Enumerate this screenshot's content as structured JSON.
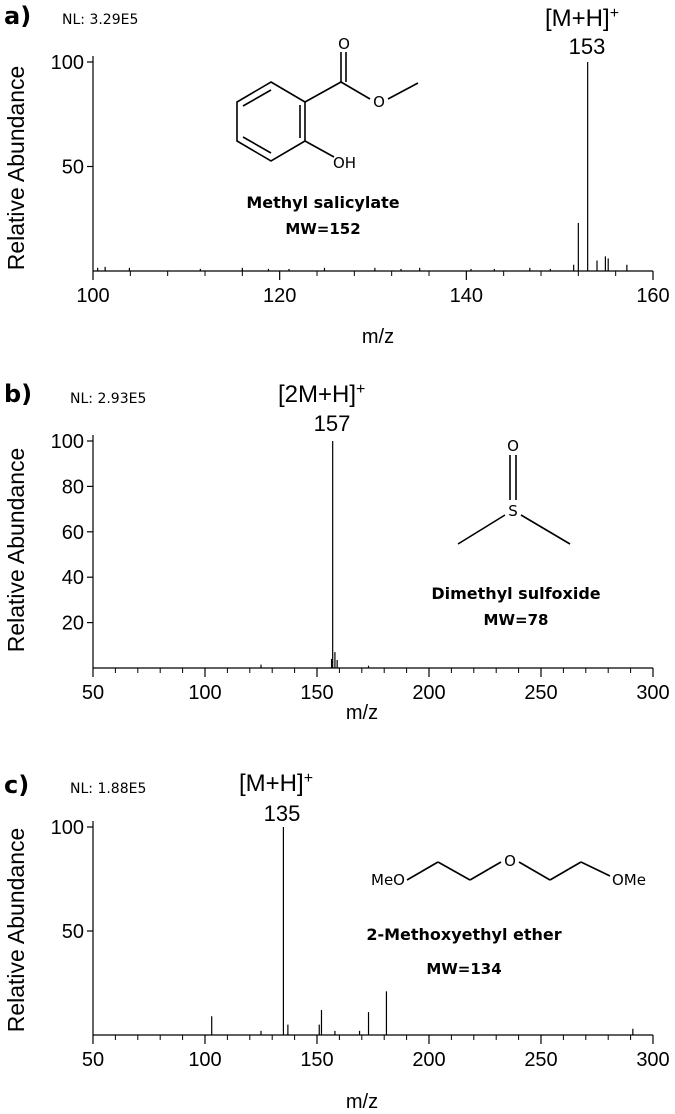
{
  "chart_data": [
    {
      "type": "bar",
      "panel": "a)",
      "nl": "NL: 3.29E5",
      "xlabel": "m/z",
      "ylabel": "Relative Abundance",
      "xlim": [
        100,
        160
      ],
      "ylim": [
        0,
        100
      ],
      "xticks": [
        100,
        120,
        140,
        160
      ],
      "yticks": [
        50,
        100
      ],
      "annotation": {
        "ion": "[M+H]",
        "charge": "+",
        "mz": "153"
      },
      "compound": {
        "name": "Methyl salicylate",
        "mw": "MW=152",
        "atoms": [
          "O",
          "O",
          "OH"
        ]
      },
      "peaks": [
        {
          "mz": 100.5,
          "y": 1.5
        },
        {
          "mz": 101.3,
          "y": 2
        },
        {
          "mz": 103.9,
          "y": 1.5
        },
        {
          "mz": 111.5,
          "y": 1
        },
        {
          "mz": 116.0,
          "y": 1.5
        },
        {
          "mz": 118.8,
          "y": 1
        },
        {
          "mz": 121.0,
          "y": 1
        },
        {
          "mz": 124.8,
          "y": 1.5
        },
        {
          "mz": 130.2,
          "y": 1.5
        },
        {
          "mz": 133.0,
          "y": 1
        },
        {
          "mz": 135.0,
          "y": 1.5
        },
        {
          "mz": 140.5,
          "y": 1
        },
        {
          "mz": 143.0,
          "y": 1
        },
        {
          "mz": 146.8,
          "y": 1.5
        },
        {
          "mz": 149.0,
          "y": 1
        },
        {
          "mz": 151.5,
          "y": 3
        },
        {
          "mz": 152.0,
          "y": 23
        },
        {
          "mz": 153.0,
          "y": 100
        },
        {
          "mz": 154.0,
          "y": 5
        },
        {
          "mz": 154.9,
          "y": 7
        },
        {
          "mz": 155.2,
          "y": 6
        },
        {
          "mz": 157.2,
          "y": 3
        }
      ]
    },
    {
      "type": "bar",
      "panel": "b)",
      "nl": "NL: 2.93E5",
      "xlabel": "m/z",
      "ylabel": "Relative Abundance",
      "xlim": [
        50,
        300
      ],
      "ylim": [
        0,
        100
      ],
      "xticks": [
        50,
        100,
        150,
        200,
        250,
        300
      ],
      "yticks": [
        20,
        40,
        60,
        80,
        100
      ],
      "annotation": {
        "ion": "[2M+H]",
        "charge": "+",
        "mz": "157"
      },
      "compound": {
        "name": "Dimethyl sulfoxide",
        "mw": "MW=78",
        "atoms": [
          "O",
          "S"
        ]
      },
      "peaks": [
        {
          "mz": 125,
          "y": 1.5
        },
        {
          "mz": 156.5,
          "y": 4
        },
        {
          "mz": 157,
          "y": 100
        },
        {
          "mz": 158,
          "y": 7
        },
        {
          "mz": 159,
          "y": 3.5
        },
        {
          "mz": 173,
          "y": 1
        }
      ]
    },
    {
      "type": "bar",
      "panel": "c)",
      "nl": "NL: 1.88E5",
      "xlabel": "m/z",
      "ylabel": "Relative Abundance",
      "xlim": [
        50,
        300
      ],
      "ylim": [
        0,
        100
      ],
      "xticks": [
        50,
        100,
        150,
        200,
        250,
        300
      ],
      "yticks": [
        50,
        100
      ],
      "annotation": {
        "ion": "[M+H]",
        "charge": "+",
        "mz": "135"
      },
      "compound": {
        "name": "2-Methoxyethyl ether",
        "mw": "MW=134",
        "atoms": [
          "MeO",
          "O",
          "OMe"
        ]
      },
      "peaks": [
        {
          "mz": 103,
          "y": 9
        },
        {
          "mz": 125,
          "y": 2
        },
        {
          "mz": 135,
          "y": 100
        },
        {
          "mz": 137,
          "y": 5
        },
        {
          "mz": 151,
          "y": 5
        },
        {
          "mz": 152,
          "y": 12
        },
        {
          "mz": 158,
          "y": 2
        },
        {
          "mz": 169,
          "y": 2
        },
        {
          "mz": 173,
          "y": 11
        },
        {
          "mz": 181,
          "y": 21
        },
        {
          "mz": 291,
          "y": 3
        }
      ]
    }
  ]
}
